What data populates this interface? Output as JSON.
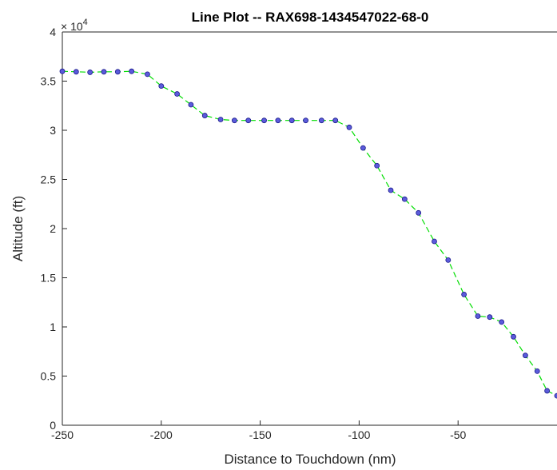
{
  "chart_data": {
    "type": "line",
    "title": "Line Plot -- RAX698-1434547022-68-0",
    "xlabel": "Distance to Touchdown (nm)",
    "ylabel": "Altitude (ft)",
    "xlim": [
      -250,
      0
    ],
    "ylim": [
      0,
      40000
    ],
    "y_exponent_label": "× 10",
    "y_exponent_power": "4",
    "x_ticks": [
      -250,
      -200,
      -150,
      -100,
      -50
    ],
    "x_tick_labels": [
      "-250",
      "-200",
      "-150",
      "-100",
      "-50"
    ],
    "y_ticks": [
      0,
      5000,
      10000,
      15000,
      20000,
      25000,
      30000,
      35000,
      40000
    ],
    "y_tick_labels": [
      "0",
      "0.5",
      "1",
      "1.5",
      "2",
      "2.5",
      "3",
      "3.5",
      "4"
    ],
    "grid": false,
    "line_color": "#00dd00",
    "line_style": "dashed",
    "marker_fill": "#5b5bdb",
    "marker_edge": "#1a1a8a",
    "series": [
      {
        "x": [
          -250,
          -243,
          -236,
          -229,
          -222,
          -215,
          -207,
          -200,
          -192,
          -185,
          -178,
          -170,
          -163,
          -156,
          -148,
          -141,
          -134,
          -127,
          -119,
          -112,
          -105,
          -98,
          -91,
          -84,
          -77,
          -70,
          -62,
          -55,
          -47,
          -40,
          -34,
          -28,
          -22,
          -16,
          -10,
          -5,
          0
        ],
        "y": [
          36000,
          35950,
          35900,
          35950,
          35950,
          36000,
          35700,
          34500,
          33700,
          32600,
          31500,
          31100,
          31000,
          31000,
          31000,
          31000,
          31000,
          31000,
          31000,
          31000,
          30300,
          28200,
          26400,
          23900,
          23000,
          21600,
          18700,
          16800,
          13300,
          11100,
          11000,
          10500,
          9000,
          7100,
          5500,
          3500,
          3000
        ]
      }
    ]
  }
}
